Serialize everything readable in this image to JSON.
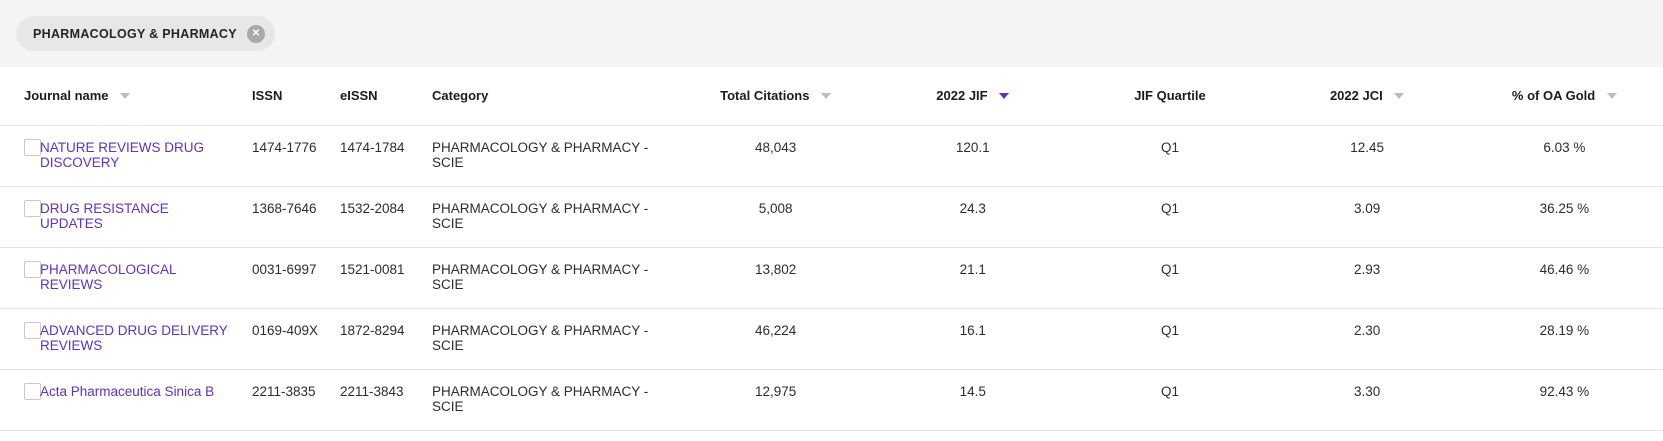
{
  "accent_color": "#5E33BF",
  "filter_chip": {
    "label": "PHARMACOLOGY & PHARMACY",
    "close_icon": "✕"
  },
  "table": {
    "columns": [
      {
        "label": "Journal name",
        "sort": "inactive"
      },
      {
        "label": "ISSN",
        "sort": "none"
      },
      {
        "label": "eISSN",
        "sort": "none"
      },
      {
        "label": "Category",
        "sort": "none"
      },
      {
        "label": "Total Citations",
        "sort": "inactive"
      },
      {
        "label": "2022 JIF",
        "sort": "active"
      },
      {
        "label": "JIF Quartile",
        "sort": "none"
      },
      {
        "label": "2022 JCI",
        "sort": "inactive"
      },
      {
        "label": "% of OA Gold",
        "sort": "inactive"
      }
    ],
    "rows": [
      {
        "journal": "NATURE REVIEWS DRUG DISCOVERY",
        "issn": "1474-1776",
        "eissn": "1474-1784",
        "category": "PHARMACOLOGY & PHARMACY - SCIE",
        "total_citations": "48,043",
        "jif": "120.1",
        "jif_quartile": "Q1",
        "jci": "12.45",
        "oa_gold": "6.03 %"
      },
      {
        "journal": "DRUG RESISTANCE UPDATES",
        "issn": "1368-7646",
        "eissn": "1532-2084",
        "category": "PHARMACOLOGY & PHARMACY - SCIE",
        "total_citations": "5,008",
        "jif": "24.3",
        "jif_quartile": "Q1",
        "jci": "3.09",
        "oa_gold": "36.25 %"
      },
      {
        "journal": "PHARMACOLOGICAL REVIEWS",
        "issn": "0031-6997",
        "eissn": "1521-0081",
        "category": "PHARMACOLOGY & PHARMACY - SCIE",
        "total_citations": "13,802",
        "jif": "21.1",
        "jif_quartile": "Q1",
        "jci": "2.93",
        "oa_gold": "46.46 %"
      },
      {
        "journal": "ADVANCED DRUG DELIVERY REVIEWS",
        "issn": "0169-409X",
        "eissn": "1872-8294",
        "category": "PHARMACOLOGY & PHARMACY - SCIE",
        "total_citations": "46,224",
        "jif": "16.1",
        "jif_quartile": "Q1",
        "jci": "2.30",
        "oa_gold": "28.19 %"
      },
      {
        "journal": "Acta Pharmaceutica Sinica B",
        "issn": "2211-3835",
        "eissn": "2211-3843",
        "category": "PHARMACOLOGY & PHARMACY - SCIE",
        "total_citations": "12,975",
        "jif": "14.5",
        "jif_quartile": "Q1",
        "jci": "3.30",
        "oa_gold": "92.43 %"
      }
    ]
  }
}
